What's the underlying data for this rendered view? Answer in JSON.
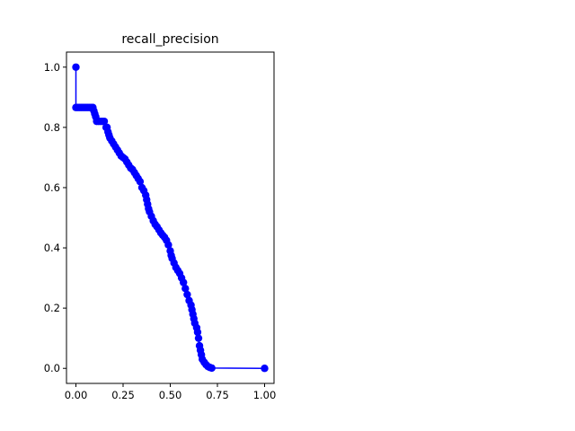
{
  "chart_data": {
    "type": "line",
    "title": "recall_precision",
    "xlabel": "",
    "ylabel": "",
    "xlim": [
      -0.05,
      1.05
    ],
    "ylim": [
      -0.05,
      1.05
    ],
    "xticks": [
      0.0,
      0.25,
      0.5,
      0.75,
      1.0
    ],
    "xtick_labels": [
      "0.00",
      "0.25",
      "0.50",
      "0.75",
      "1.00"
    ],
    "yticks": [
      0.0,
      0.2,
      0.4,
      0.6,
      0.8,
      1.0
    ],
    "ytick_labels": [
      "0.0",
      "0.2",
      "0.4",
      "0.6",
      "0.8",
      "1.0"
    ],
    "grid": false,
    "legend": false,
    "color": "#0000ff",
    "marker": "circle",
    "series": [
      {
        "x": [
          0.0,
          0.0,
          0.01,
          0.02,
          0.03,
          0.04,
          0.05,
          0.06,
          0.07,
          0.08,
          0.09,
          0.095,
          0.1,
          0.105,
          0.11,
          0.12,
          0.13,
          0.14,
          0.15,
          0.16,
          0.165,
          0.17,
          0.175,
          0.18,
          0.19,
          0.2,
          0.21,
          0.22,
          0.23,
          0.24,
          0.25,
          0.26,
          0.27,
          0.28,
          0.29,
          0.3,
          0.31,
          0.32,
          0.33,
          0.34,
          0.35,
          0.36,
          0.37,
          0.375,
          0.38,
          0.385,
          0.39,
          0.4,
          0.41,
          0.42,
          0.43,
          0.44,
          0.45,
          0.46,
          0.47,
          0.48,
          0.49,
          0.5,
          0.505,
          0.51,
          0.52,
          0.53,
          0.54,
          0.55,
          0.56,
          0.57,
          0.58,
          0.59,
          0.6,
          0.61,
          0.615,
          0.62,
          0.625,
          0.63,
          0.64,
          0.645,
          0.65,
          0.655,
          0.66,
          0.665,
          0.67,
          0.68,
          0.69,
          0.7,
          0.71,
          0.72,
          1.0
        ],
        "y": [
          1.0,
          0.866,
          0.866,
          0.866,
          0.866,
          0.866,
          0.866,
          0.866,
          0.866,
          0.866,
          0.866,
          0.855,
          0.845,
          0.835,
          0.82,
          0.82,
          0.82,
          0.82,
          0.82,
          0.8,
          0.8,
          0.785,
          0.775,
          0.765,
          0.755,
          0.745,
          0.735,
          0.725,
          0.715,
          0.705,
          0.7,
          0.695,
          0.685,
          0.675,
          0.665,
          0.66,
          0.65,
          0.64,
          0.63,
          0.62,
          0.6,
          0.59,
          0.575,
          0.56,
          0.545,
          0.53,
          0.52,
          0.505,
          0.49,
          0.478,
          0.47,
          0.46,
          0.45,
          0.442,
          0.435,
          0.425,
          0.41,
          0.39,
          0.375,
          0.365,
          0.35,
          0.335,
          0.325,
          0.315,
          0.3,
          0.285,
          0.265,
          0.245,
          0.225,
          0.21,
          0.195,
          0.18,
          0.165,
          0.15,
          0.135,
          0.12,
          0.1,
          0.075,
          0.06,
          0.045,
          0.03,
          0.02,
          0.012,
          0.006,
          0.003,
          0.001,
          0.0
        ]
      }
    ]
  }
}
